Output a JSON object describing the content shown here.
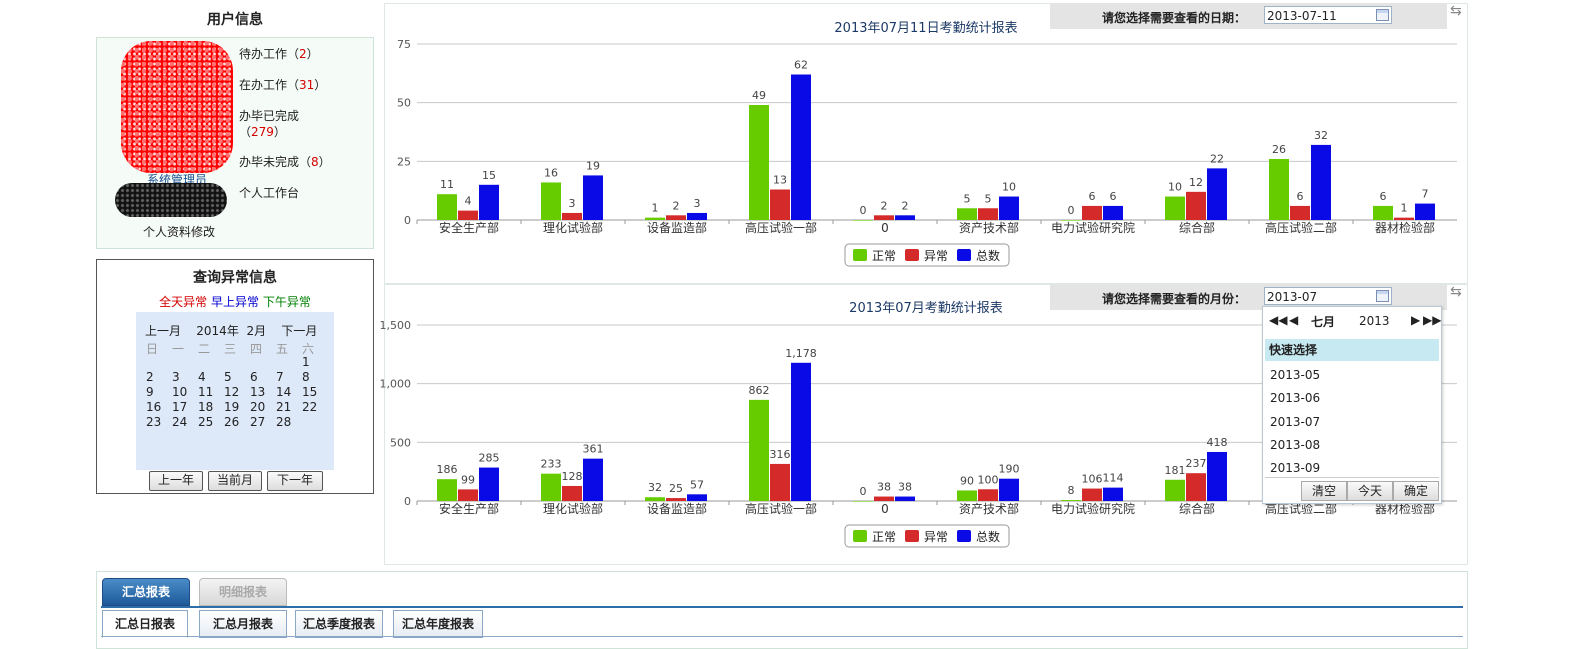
{
  "user_info": {
    "title": "用户信息",
    "user_name": "系统管理员",
    "tasks": [
      {
        "label": "待办工作（",
        "count": "2",
        "suffix": "）"
      },
      {
        "label": "在办工作（",
        "count": "31",
        "suffix": "）"
      },
      {
        "label": "办毕已完成",
        "count": "279",
        "suffix": "）",
        "prefix2": "（"
      },
      {
        "label": "办毕未完成（",
        "count": "8",
        "suffix": "）"
      }
    ],
    "workspace_link": "个人工作台",
    "profile_link": "个人资料修改"
  },
  "abnormal_query": {
    "title": "查询异常信息",
    "legend": [
      {
        "label": "全天异常",
        "color": "#d40000"
      },
      {
        "label": "早上异常",
        "color": "#0000d0"
      },
      {
        "label": "下午异常",
        "color": "#008000"
      }
    ],
    "calendar": {
      "prev_month": "上一月",
      "year": "2014年",
      "month": "2月",
      "next_month": "下一月",
      "weekdays": [
        "日",
        "一",
        "二",
        "三",
        "四",
        "五",
        "六"
      ],
      "days": [
        "",
        "",
        "",
        "",
        "",
        "",
        "1",
        "2",
        "3",
        "4",
        "5",
        "6",
        "7",
        "8",
        "9",
        "10",
        "11",
        "12",
        "13",
        "14",
        "15",
        "16",
        "17",
        "18",
        "19",
        "20",
        "21",
        "22",
        "23",
        "24",
        "25",
        "26",
        "27",
        "28"
      ]
    },
    "buttons": {
      "prev_year": "上一年",
      "current_month": "当前月",
      "next_year": "下一年"
    }
  },
  "daily_chart": {
    "date_label": "请您选择需要查看的日期：",
    "date_value": "2013-07-11"
  },
  "monthly_chart": {
    "date_label": "请您选择需要查看的月份：",
    "date_value": "2013-07"
  },
  "series_colors": {
    "normal": "#66cc00",
    "abnormal": "#d42a2a",
    "total": "#0a0ae6"
  },
  "chart_data": [
    {
      "type": "bar",
      "title": "2013年07月11日考勤统计报表",
      "categories": [
        "安全生产部",
        "理化试验部",
        "设备监造部",
        "高压试验一部",
        "0",
        "资产技术部",
        "电力试验研究院",
        "综合部",
        "高压试验二部",
        "器材检验部"
      ],
      "series": [
        {
          "name": "正常",
          "values": [
            11,
            16,
            1,
            49,
            0,
            5,
            0,
            10,
            26,
            6
          ]
        },
        {
          "name": "异常",
          "values": [
            4,
            3,
            2,
            13,
            2,
            5,
            6,
            12,
            6,
            1
          ]
        },
        {
          "name": "总数",
          "values": [
            15,
            19,
            3,
            62,
            2,
            10,
            6,
            22,
            32,
            7
          ]
        }
      ],
      "yticks": [
        "0",
        "25",
        "50",
        "75"
      ],
      "ylim": [
        0,
        75
      ],
      "legend_position": "bottom",
      "grid": true
    },
    {
      "type": "bar",
      "title": "2013年07月考勤统计报表",
      "categories": [
        "安全生产部",
        "理化试验部",
        "设备监造部",
        "高压试验一部",
        "0",
        "资产技术部",
        "电力试验研究院",
        "综合部",
        "高压试验二部",
        "器材检验部"
      ],
      "series": [
        {
          "name": "正常",
          "values": [
            186,
            233,
            32,
            862,
            0,
            90,
            8,
            181,
            null,
            null
          ]
        },
        {
          "name": "异常",
          "values": [
            99,
            128,
            25,
            316,
            38,
            100,
            106,
            237,
            null,
            null
          ]
        },
        {
          "name": "总数",
          "values": [
            285,
            361,
            57,
            1178,
            38,
            190,
            114,
            418,
            null,
            null
          ]
        }
      ],
      "value_labels": [
        [
          "186",
          "233",
          "32",
          "862",
          "0",
          "90",
          "8",
          "181",
          "",
          ""
        ],
        [
          "99",
          "128",
          "25",
          "316",
          "38",
          "100",
          "106",
          "237",
          "",
          ""
        ],
        [
          "285",
          "361",
          "57",
          "1,178",
          "38",
          "190",
          "114",
          "418",
          "",
          ""
        ]
      ],
      "yticks": [
        "0",
        "500",
        "1,000",
        "1,500"
      ],
      "ylim": [
        0,
        1500
      ],
      "legend_position": "bottom",
      "grid": true
    }
  ],
  "month_picker": {
    "month": "七月",
    "year": "2013",
    "quick_select": "快速选择",
    "options": [
      "2013-05",
      "2013-06",
      "2013-07",
      "2013-08",
      "2013-09"
    ],
    "buttons": {
      "clear": "清空",
      "today": "今天",
      "ok": "确定"
    }
  },
  "report_tabs": {
    "top": [
      {
        "label": "汇总报表",
        "active": true
      },
      {
        "label": "明细报表",
        "active": false
      }
    ],
    "sub": [
      {
        "label": "汇总日报表",
        "active": true
      },
      {
        "label": "汇总月报表"
      },
      {
        "label": "汇总季度报表"
      },
      {
        "label": "汇总年度报表"
      }
    ]
  }
}
